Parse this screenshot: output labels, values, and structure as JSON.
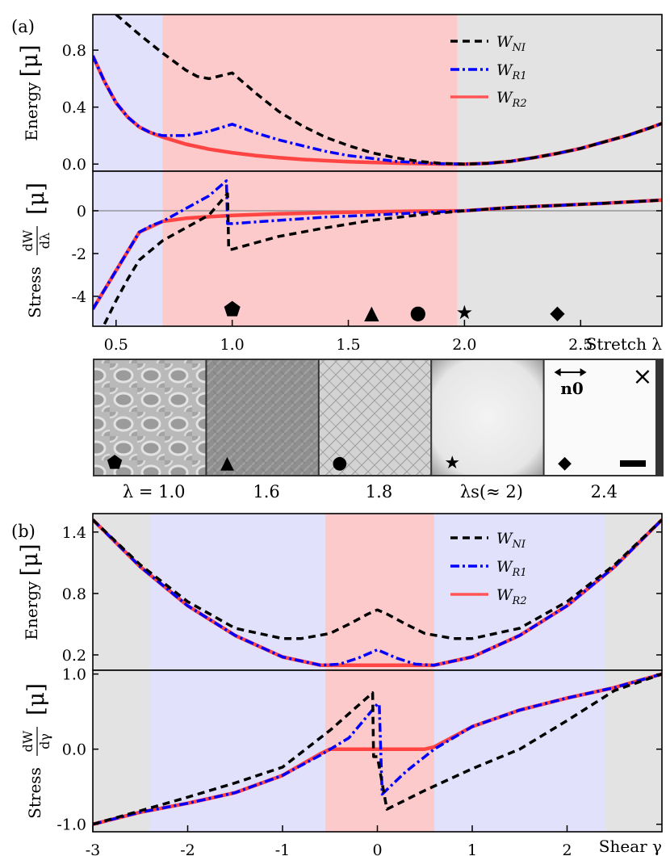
{
  "chart_data": [
    {
      "type": "line",
      "panel": "(a)",
      "subplots": [
        "energy",
        "stress"
      ],
      "xlabel": "Stretch λ",
      "xlim": [
        0.4,
        2.85
      ],
      "x_ticks": [
        "0.5",
        "1.0",
        "1.5",
        "2.0",
        "2.5"
      ],
      "energy": {
        "ylabel_text": "Energy",
        "unit": "[μ]",
        "ylim": [
          -0.05,
          1.05
        ],
        "y_ticks": [
          "0.0",
          "0.4",
          "0.8"
        ],
        "regions": [
          {
            "from": 0.4,
            "to": 0.7,
            "color": "#e1e1fb"
          },
          {
            "from": 0.7,
            "to": 1.97,
            "color": "#fccaca"
          },
          {
            "from": 1.97,
            "to": 2.85,
            "color": "#e3e3e3"
          }
        ],
        "series": [
          {
            "name": "W_NI",
            "label": "W",
            "sub": "NI",
            "style": "dashed",
            "color": "#000000",
            "x": [
              0.5,
              0.55,
              0.6,
              0.7,
              0.8,
              0.85,
              0.9,
              1.0,
              1.1,
              1.2,
              1.3,
              1.4,
              1.5,
              1.6,
              1.7,
              1.8,
              1.9,
              2.0,
              2.1,
              2.2,
              2.3,
              2.4,
              2.5,
              2.6,
              2.7,
              2.8,
              2.85
            ],
            "y": [
              1.05,
              0.98,
              0.91,
              0.78,
              0.66,
              0.615,
              0.6,
              0.64,
              0.5,
              0.37,
              0.27,
              0.19,
              0.13,
              0.08,
              0.045,
              0.02,
              0.005,
              0.0,
              0.005,
              0.02,
              0.045,
              0.075,
              0.11,
              0.155,
              0.2,
              0.255,
              0.285
            ]
          },
          {
            "name": "W_R1",
            "label": "W",
            "sub": "R1",
            "style": "dashdot",
            "color": "#0000ff",
            "x": [
              0.4,
              0.45,
              0.5,
              0.55,
              0.6,
              0.65,
              0.7,
              0.8,
              0.9,
              1.0,
              1.1,
              1.2,
              1.3,
              1.4,
              1.5,
              1.6,
              1.7,
              1.8,
              1.9,
              2.0,
              2.1,
              2.2,
              2.3,
              2.4,
              2.5,
              2.6,
              2.7,
              2.8,
              2.85
            ],
            "y": [
              0.76,
              0.58,
              0.43,
              0.33,
              0.26,
              0.22,
              0.2,
              0.2,
              0.23,
              0.28,
              0.22,
              0.17,
              0.13,
              0.09,
              0.06,
              0.04,
              0.02,
              0.01,
              0.003,
              0.0,
              0.005,
              0.02,
              0.045,
              0.075,
              0.11,
              0.155,
              0.2,
              0.255,
              0.285
            ]
          },
          {
            "name": "W_R2",
            "label": "W",
            "sub": "R2",
            "style": "solid",
            "color": "#ff0000",
            "x": [
              0.4,
              0.45,
              0.5,
              0.55,
              0.6,
              0.65,
              0.7,
              0.8,
              0.9,
              1.0,
              1.1,
              1.2,
              1.3,
              1.4,
              1.5,
              1.6,
              1.7,
              1.8,
              1.9,
              2.0,
              2.1,
              2.2,
              2.3,
              2.4,
              2.5,
              2.6,
              2.7,
              2.8,
              2.85
            ],
            "y": [
              0.76,
              0.58,
              0.43,
              0.33,
              0.26,
              0.22,
              0.19,
              0.14,
              0.105,
              0.08,
              0.06,
              0.045,
              0.033,
              0.024,
              0.017,
              0.012,
              0.007,
              0.004,
              0.001,
              0.0,
              0.005,
              0.02,
              0.045,
              0.075,
              0.11,
              0.155,
              0.2,
              0.255,
              0.285
            ]
          }
        ]
      },
      "stress": {
        "ylabel_text": "Stress",
        "ylabel_frac_num": "dW",
        "ylabel_frac_den": "dλ",
        "unit": "[μ]",
        "ylim": [
          -5.4,
          1.85
        ],
        "y_ticks": [
          "0",
          "-2",
          "-4"
        ],
        "zero_line": true,
        "series": [
          {
            "name": "W_NI",
            "style": "dashed",
            "color": "#000000",
            "x": [
              0.45,
              0.5,
              0.55,
              0.6,
              0.7,
              0.8,
              0.9,
              0.98,
              0.985,
              1.0,
              1.2,
              1.4,
              1.6,
              1.8,
              1.9,
              2.0,
              2.2,
              2.4,
              2.6,
              2.85
            ],
            "y": [
              -5.3,
              -4.2,
              -3.2,
              -2.3,
              -1.4,
              -0.8,
              -0.2,
              0.8,
              -1.8,
              -1.8,
              -1.2,
              -0.8,
              -0.45,
              -0.2,
              -0.1,
              0.0,
              0.15,
              0.25,
              0.35,
              0.5
            ]
          },
          {
            "name": "W_R1",
            "style": "dashdot",
            "color": "#0000ff",
            "x": [
              0.4,
              0.5,
              0.6,
              0.65,
              0.7,
              0.8,
              0.9,
              0.975,
              0.98,
              1.0,
              1.2,
              1.4,
              1.6,
              1.8,
              2.0,
              2.2,
              2.4,
              2.6,
              2.85
            ],
            "y": [
              -4.6,
              -2.8,
              -1.0,
              -0.7,
              -0.5,
              0.1,
              0.7,
              1.4,
              -0.6,
              -0.6,
              -0.45,
              -0.3,
              -0.2,
              -0.1,
              0.0,
              0.15,
              0.25,
              0.35,
              0.5
            ]
          },
          {
            "name": "W_R2",
            "style": "solid",
            "color": "#ff0000",
            "x": [
              0.4,
              0.5,
              0.6,
              0.7,
              0.8,
              0.9,
              1.0,
              1.2,
              1.4,
              1.6,
              1.8,
              2.0,
              2.2,
              2.4,
              2.6,
              2.85
            ],
            "y": [
              -4.6,
              -2.8,
              -1.0,
              -0.5,
              -0.35,
              -0.28,
              -0.22,
              -0.14,
              -0.09,
              -0.05,
              -0.02,
              0.0,
              0.15,
              0.25,
              0.35,
              0.5
            ]
          }
        ],
        "markers": [
          {
            "x": 1.0,
            "y": -4.6,
            "symbol": "⬟"
          },
          {
            "x": 1.6,
            "y": -4.75,
            "symbol": "▲"
          },
          {
            "x": 1.8,
            "y": -4.75,
            "symbol": "●"
          },
          {
            "x": 2.0,
            "y": -4.75,
            "symbol": "★"
          },
          {
            "x": 2.4,
            "y": -4.75,
            "symbol": "◆"
          }
        ]
      }
    },
    {
      "type": "image-strip",
      "panels": [
        {
          "caption": "λ = 1.0",
          "symbol": "⬟",
          "style": "cells"
        },
        {
          "caption": "1.6",
          "symbol": "▲",
          "style": "gray"
        },
        {
          "caption": "1.8",
          "symbol": "●",
          "style": "cross"
        },
        {
          "caption": "λs(≈ 2)",
          "symbol": "★",
          "style": "light"
        },
        {
          "caption": "2.4",
          "symbol": "◆",
          "style": "white",
          "director": "n0",
          "cross": "×"
        }
      ]
    },
    {
      "type": "line",
      "panel": "(b)",
      "subplots": [
        "energy",
        "stress"
      ],
      "xlabel": "Shear γ",
      "xlim": [
        -3.0,
        3.0
      ],
      "x_ticks": [
        "-3",
        "-2",
        "-1",
        "0",
        "1",
        "2"
      ],
      "energy": {
        "ylabel_text": "Energy",
        "unit": "[μ]",
        "ylim": [
          0.05,
          1.58
        ],
        "y_ticks": [
          "0.2",
          "0.8",
          "1.4"
        ],
        "regions": [
          {
            "from": -3.0,
            "to": -2.4,
            "color": "#e3e3e3"
          },
          {
            "from": -2.4,
            "to": -0.55,
            "color": "#e1e1fb"
          },
          {
            "from": -0.55,
            "to": 0.6,
            "color": "#fccaca"
          },
          {
            "from": 0.6,
            "to": 2.4,
            "color": "#e1e1fb"
          },
          {
            "from": 2.4,
            "to": 3.0,
            "color": "#e3e3e3"
          }
        ],
        "series": [
          {
            "name": "W_NI",
            "label": "W",
            "sub": "NI",
            "style": "dashed",
            "color": "#000000",
            "x": [
              -3.0,
              -2.5,
              -2.0,
              -1.5,
              -1.0,
              -0.8,
              -0.5,
              -0.3,
              -0.1,
              0.0,
              0.1,
              0.3,
              0.5,
              0.8,
              1.0,
              1.5,
              2.0,
              2.5,
              3.0
            ],
            "y": [
              1.52,
              1.08,
              0.72,
              0.46,
              0.36,
              0.36,
              0.41,
              0.5,
              0.6,
              0.64,
              0.6,
              0.5,
              0.41,
              0.36,
              0.36,
              0.46,
              0.72,
              1.08,
              1.52
            ]
          },
          {
            "name": "W_R1",
            "label": "W",
            "sub": "R1",
            "style": "dashdot",
            "color": "#0000ff",
            "x": [
              -3.0,
              -2.5,
              -2.0,
              -1.5,
              -1.0,
              -0.6,
              -0.4,
              -0.2,
              0.0,
              0.2,
              0.4,
              0.6,
              1.0,
              1.5,
              2.0,
              2.5,
              3.0
            ],
            "y": [
              1.52,
              1.06,
              0.68,
              0.39,
              0.18,
              0.1,
              0.11,
              0.17,
              0.25,
              0.17,
              0.11,
              0.1,
              0.18,
              0.39,
              0.68,
              1.06,
              1.52
            ]
          },
          {
            "name": "W_R2",
            "label": "W",
            "sub": "R2",
            "style": "solid",
            "color": "#ff0000",
            "x": [
              -3.0,
              -2.5,
              -2.0,
              -1.5,
              -1.0,
              -0.6,
              0.0,
              0.6,
              1.0,
              1.5,
              2.0,
              2.5,
              3.0
            ],
            "y": [
              1.52,
              1.06,
              0.68,
              0.39,
              0.18,
              0.1,
              0.1,
              0.1,
              0.18,
              0.39,
              0.68,
              1.06,
              1.52
            ]
          }
        ]
      },
      "stress": {
        "ylabel_text": "Stress",
        "ylabel_frac_num": "dW",
        "ylabel_frac_den": "dγ",
        "unit": "[μ]",
        "ylim": [
          -1.1,
          1.05
        ],
        "y_ticks": [
          "1.0",
          "0.0",
          "-1.0"
        ],
        "series": [
          {
            "name": "W_NI",
            "style": "dashed",
            "color": "#000000",
            "x": [
              -3.0,
              -2.5,
              -2.0,
              -1.5,
              -1.0,
              -0.5,
              -0.05,
              -0.04,
              0.0,
              0.1,
              0.5,
              1.0,
              1.5,
              2.0,
              2.5,
              3.0
            ],
            "y": [
              -1.0,
              -0.82,
              -0.64,
              -0.45,
              -0.24,
              0.25,
              0.75,
              -0.1,
              -0.1,
              -0.8,
              -0.55,
              -0.26,
              0.0,
              0.38,
              0.78,
              1.0
            ]
          },
          {
            "name": "W_R1",
            "style": "dashdot",
            "color": "#0000ff",
            "x": [
              -3.0,
              -2.5,
              -2.0,
              -1.5,
              -1.0,
              -0.6,
              -0.3,
              0.0,
              0.02,
              0.05,
              0.3,
              0.6,
              1.0,
              1.5,
              2.0,
              2.5,
              3.0
            ],
            "y": [
              -1.0,
              -0.84,
              -0.72,
              -0.58,
              -0.35,
              -0.08,
              0.15,
              0.6,
              0.6,
              -0.6,
              -0.3,
              0.0,
              0.3,
              0.52,
              0.68,
              0.82,
              1.0
            ]
          },
          {
            "name": "W_R2",
            "style": "solid",
            "color": "#ff0000",
            "x": [
              -3.0,
              -2.5,
              -2.0,
              -1.5,
              -1.0,
              -0.6,
              -0.5,
              0.0,
              0.5,
              0.6,
              1.0,
              1.5,
              2.0,
              2.5,
              3.0
            ],
            "y": [
              -1.0,
              -0.84,
              -0.72,
              -0.58,
              -0.35,
              -0.06,
              0.0,
              0.0,
              0.0,
              0.03,
              0.3,
              0.52,
              0.68,
              0.82,
              1.0
            ]
          }
        ]
      }
    }
  ]
}
